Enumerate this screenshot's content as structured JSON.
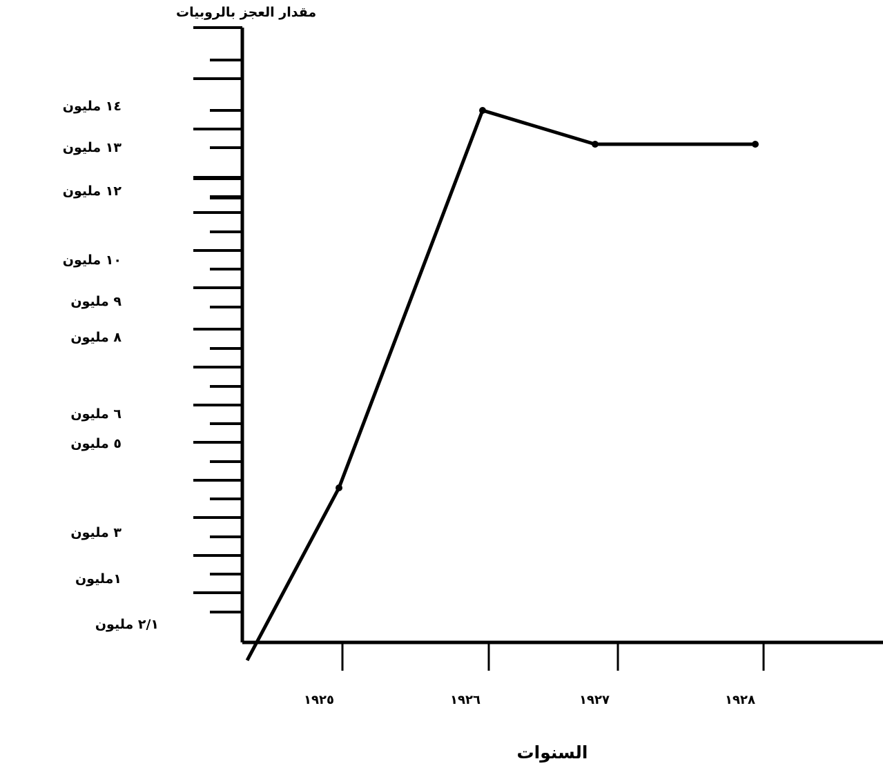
{
  "chart_data": {
    "type": "line",
    "title": "",
    "ylabel": "مقدار العجز بالروبيات",
    "xlabel": "السنوات",
    "x_tick_labels": [
      "١٩٢٥",
      "١٩٢٦",
      "١٩٢٧",
      "١٩٢٨"
    ],
    "y_tick_labels": [
      {
        "value": 0.5,
        "label": "٢/١ مليون"
      },
      {
        "value": 1,
        "label": "١مليون"
      },
      {
        "value": 3,
        "label": "٣ مليون"
      },
      {
        "value": 5,
        "label": "٥ مليون"
      },
      {
        "value": 6,
        "label": "٦ مليون"
      },
      {
        "value": 8,
        "label": "٨ مليون"
      },
      {
        "value": 9,
        "label": "٩ مليون"
      },
      {
        "value": 10,
        "label": "١٠ مليون"
      },
      {
        "value": 12,
        "label": "١٢ مليون"
      },
      {
        "value": 13,
        "label": "١٣ مليون"
      },
      {
        "value": 14,
        "label": "١٤ مليون"
      }
    ],
    "series": [
      {
        "points": [
          {
            "x": 1924.6,
            "y": 0,
            "marker": false
          },
          {
            "x": 1925,
            "y": 4,
            "marker": true
          },
          {
            "x": 1926,
            "y": 14,
            "marker": true
          },
          {
            "x": 1926.75,
            "y": 13.2,
            "marker": true
          },
          {
            "x": 1927.8,
            "y": 13.2,
            "marker": true
          }
        ]
      }
    ],
    "xlim": [
      1924.3,
      1929.15
    ],
    "ylim": [
      0,
      16
    ],
    "grid": false,
    "colors": {
      "line": "#000000",
      "axis": "#000000",
      "text": "#000000"
    }
  }
}
